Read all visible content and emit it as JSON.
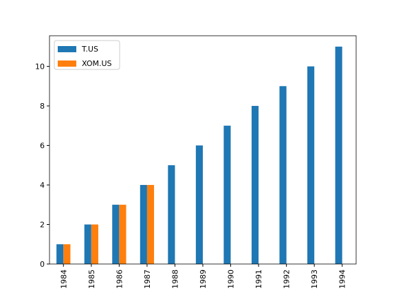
{
  "chart_data": {
    "type": "bar",
    "categories": [
      "1984",
      "1985",
      "1986",
      "1987",
      "1988",
      "1989",
      "1990",
      "1991",
      "1992",
      "1993",
      "1994"
    ],
    "series": [
      {
        "name": "T.US",
        "color": "#1f77b4",
        "values": [
          1,
          2,
          3,
          4,
          5,
          6,
          7,
          8,
          9,
          10,
          11
        ]
      },
      {
        "name": "XOM.US",
        "color": "#ff7f0e",
        "values": [
          1,
          2,
          3,
          4,
          null,
          null,
          null,
          null,
          null,
          null,
          null
        ]
      }
    ],
    "ylim": [
      0,
      11.55
    ],
    "yticks": [
      0,
      2,
      4,
      6,
      8,
      10
    ],
    "legend": "upper left"
  }
}
